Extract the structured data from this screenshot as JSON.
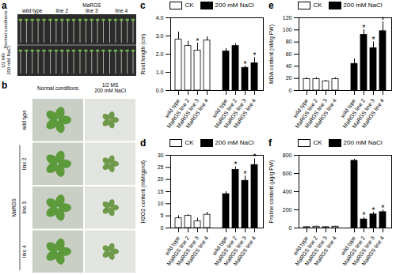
{
  "photo_panels": [
    {
      "panel_label": "a",
      "column_labels": [
        "wild type",
        "line 2",
        "line 3",
        "line 4"
      ],
      "column_group_label": "MaRGS",
      "row_labels": [
        [
          "Normal conditions"
        ],
        [
          "1/2 MS",
          "200 mM NaCl"
        ]
      ]
    },
    {
      "panel_label": "b",
      "column_labels": [
        [
          "Normal conditions"
        ],
        [
          "1/2 MS",
          "200 mM NaCl"
        ]
      ],
      "row_labels": [
        "wild type",
        "line 2",
        "line 3",
        "line 4"
      ],
      "row_group_label": "MaRGS"
    }
  ],
  "chart_data": [
    {
      "type": "bar",
      "panel_label": "c",
      "y_label": "Root length (cm)",
      "categories": [
        "wild type",
        "MaRGS line 2",
        "MaRGS line 3",
        "MaRGS line 4"
      ],
      "ylim": [
        0,
        4
      ],
      "yticks": [
        0,
        1,
        2,
        3,
        4
      ],
      "legend": "top",
      "significance_mark": "*",
      "series": [
        {
          "name": "CK",
          "color": "#ffffff",
          "values": [
            2.8,
            2.45,
            2.2,
            2.75
          ],
          "errors": [
            0.4,
            0.25,
            0.4,
            0.2
          ],
          "significant": [
            false,
            false,
            true,
            false
          ]
        },
        {
          "name": "200 mM NaCl",
          "color": "#000000",
          "values": [
            2.15,
            2.45,
            1.25,
            1.5
          ],
          "errors": [
            0.15,
            0.12,
            0.1,
            0.3
          ],
          "significant": [
            false,
            false,
            true,
            true
          ]
        }
      ]
    },
    {
      "type": "bar",
      "panel_label": "e",
      "y_label": "MDA content (nM/g FW)",
      "categories": [
        "wild type",
        "MaRGS line 2",
        "MaRGS line 3",
        "MaRGS line 4"
      ],
      "ylim": [
        0,
        120
      ],
      "yticks": [
        0,
        20,
        40,
        60,
        80,
        100,
        120
      ],
      "legend": "top",
      "significance_mark": "*",
      "series": [
        {
          "name": "CK",
          "color": "#ffffff",
          "values": [
            19,
            19,
            15,
            19
          ],
          "errors": [
            2,
            2,
            1.5,
            2
          ],
          "significant": [
            false,
            false,
            false,
            false
          ]
        },
        {
          "name": "200 mM NaCl",
          "color": "#000000",
          "values": [
            44,
            92,
            70,
            98
          ],
          "errors": [
            8,
            8,
            10,
            15
          ],
          "significant": [
            false,
            true,
            true,
            true
          ]
        }
      ]
    },
    {
      "type": "bar",
      "panel_label": "d",
      "y_label": "H2O2 content (mM/gprot)",
      "categories": [
        "wild type",
        "MaRGS line 2",
        "MaRGS line 3",
        "MaRGS line 4"
      ],
      "ylim": [
        0,
        30
      ],
      "yticks": [
        0,
        5,
        10,
        15,
        20,
        25,
        30
      ],
      "legend": "top",
      "significance_mark": "*",
      "series": [
        {
          "name": "CK",
          "color": "#ffffff",
          "values": [
            4,
            5,
            2.8,
            5.5
          ],
          "errors": [
            1,
            0.4,
            1.2,
            1
          ],
          "significant": [
            false,
            false,
            false,
            false
          ]
        },
        {
          "name": "200 mM NaCl",
          "color": "#000000",
          "values": [
            14,
            24,
            19.5,
            26
          ],
          "errors": [
            1,
            1.2,
            2,
            2.5
          ],
          "significant": [
            false,
            true,
            true,
            true
          ]
        }
      ]
    },
    {
      "type": "bar",
      "panel_label": "f",
      "y_label": "Proline content (µg/g FW)",
      "categories": [
        "wild type",
        "MaRGS line 2",
        "MaRGS line 3",
        "MaRGS line 4"
      ],
      "ylim": [
        0,
        800
      ],
      "yticks": [
        0,
        200,
        400,
        600,
        800
      ],
      "legend": "top",
      "significance_mark": "*",
      "series": [
        {
          "name": "CK",
          "color": "#ffffff",
          "values": [
            10,
            15,
            10,
            15
          ],
          "errors": [
            3,
            4,
            3,
            4
          ],
          "significant": [
            false,
            false,
            false,
            false
          ]
        },
        {
          "name": "200 mM NaCl",
          "color": "#000000",
          "values": [
            740,
            95,
            150,
            175
          ],
          "errors": [
            15,
            20,
            20,
            25
          ],
          "significant": [
            false,
            true,
            true,
            true
          ]
        }
      ]
    }
  ]
}
